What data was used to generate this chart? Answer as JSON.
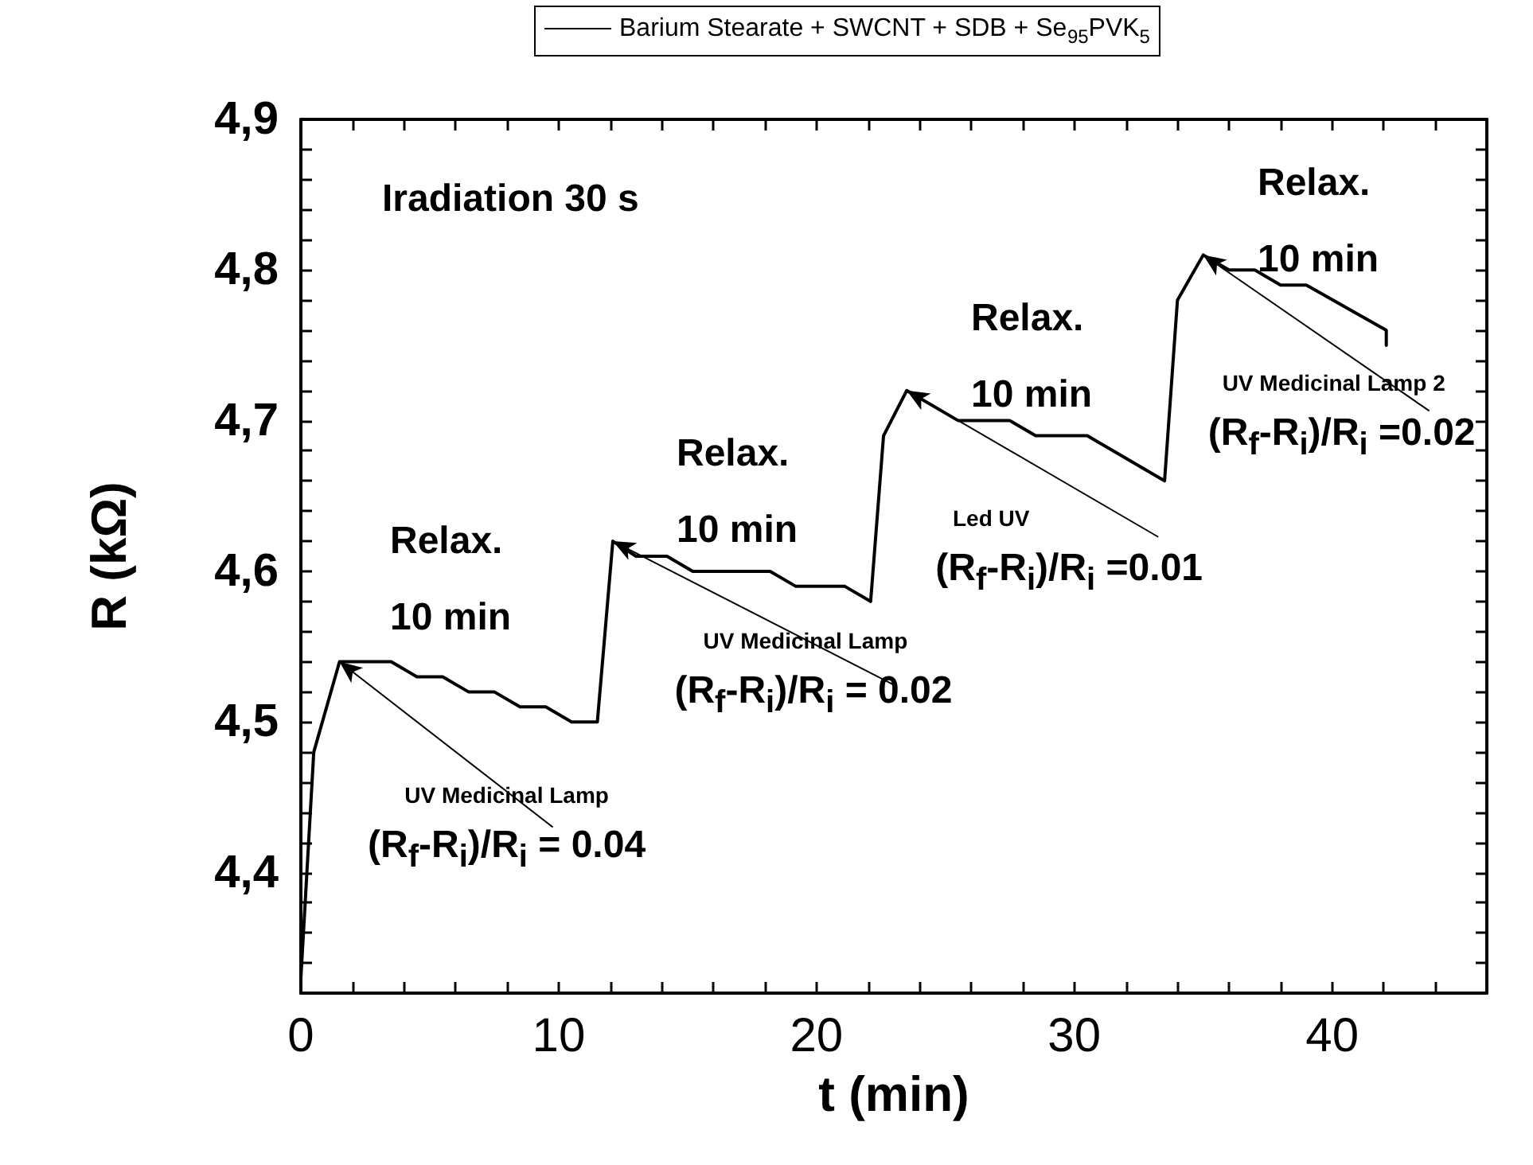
{
  "chart_data": {
    "type": "line",
    "xlabel": "t (min)",
    "ylabel": "R (kΩ)",
    "xlim": [
      0,
      46
    ],
    "ylim": [
      4.32,
      4.9
    ],
    "xticks": [
      0,
      {
        "value": 2,
        "label": null
      },
      {
        "value": 4,
        "label": null
      },
      {
        "value": 6,
        "label": null
      },
      {
        "value": 8,
        "label": null
      },
      10,
      {
        "value": 12,
        "label": null
      },
      {
        "value": 14,
        "label": null
      },
      {
        "value": 16,
        "label": null
      },
      {
        "value": 18,
        "label": null
      },
      20,
      {
        "value": 22,
        "label": null
      },
      {
        "value": 24,
        "label": null
      },
      {
        "value": 26,
        "label": null
      },
      {
        "value": 28,
        "label": null
      },
      30,
      {
        "value": 32,
        "label": null
      },
      {
        "value": 34,
        "label": null
      },
      {
        "value": 36,
        "label": null
      },
      {
        "value": 38,
        "label": null
      },
      40,
      {
        "value": 42,
        "label": null
      },
      {
        "value": 44,
        "label": null
      }
    ],
    "yticks": [
      {
        "value": 4.34,
        "label": null
      },
      {
        "value": 4.36,
        "label": null
      },
      {
        "value": 4.38,
        "label": null
      },
      {
        "value": 4.4,
        "label": "4,4"
      },
      {
        "value": 4.42,
        "label": null
      },
      {
        "value": 4.44,
        "label": null
      },
      {
        "value": 4.46,
        "label": null
      },
      {
        "value": 4.48,
        "label": null
      },
      {
        "value": 4.5,
        "label": "4,5"
      },
      {
        "value": 4.52,
        "label": null
      },
      {
        "value": 4.54,
        "label": null
      },
      {
        "value": 4.56,
        "label": null
      },
      {
        "value": 4.58,
        "label": null
      },
      {
        "value": 4.6,
        "label": "4,6"
      },
      {
        "value": 4.62,
        "label": null
      },
      {
        "value": 4.64,
        "label": null
      },
      {
        "value": 4.66,
        "label": null
      },
      {
        "value": 4.68,
        "label": null
      },
      {
        "value": 4.7,
        "label": "4,7"
      },
      {
        "value": 4.72,
        "label": null
      },
      {
        "value": 4.74,
        "label": null
      },
      {
        "value": 4.76,
        "label": null
      },
      {
        "value": 4.78,
        "label": null
      },
      {
        "value": 4.8,
        "label": "4,8"
      },
      {
        "value": 4.82,
        "label": null
      },
      {
        "value": 4.84,
        "label": null
      },
      {
        "value": 4.86,
        "label": null
      },
      {
        "value": 4.88,
        "label": null
      },
      {
        "value": 4.9,
        "label": "4,9"
      }
    ],
    "grid": false,
    "legend": "top right",
    "marker": "none",
    "line_style": "solid",
    "series": [
      {
        "name": "Barium Stearate + SWCNT + SDB + Se$_{95}$PVK$_{5}$",
        "color": "#000000",
        "x": [
          0,
          0.5,
          1.5,
          3.5,
          4.5,
          5.5,
          6.5,
          7.5,
          8.5,
          9.5,
          10.5,
          11.5,
          12.1,
          13,
          14.2,
          15.2,
          18.2,
          19.2,
          21.1,
          22.1,
          22.6,
          23.5,
          25.5,
          27.5,
          28.5,
          30.5,
          33.5,
          34,
          35,
          36,
          37,
          38,
          39,
          42.1,
          42.1
        ],
        "values": [
          4.33,
          4.48,
          4.54,
          4.54,
          4.53,
          4.53,
          4.52,
          4.52,
          4.51,
          4.51,
          4.5,
          4.5,
          4.62,
          4.61,
          4.61,
          4.6,
          4.6,
          4.59,
          4.59,
          4.58,
          4.69,
          4.72,
          4.7,
          4.7,
          4.69,
          4.69,
          4.66,
          4.78,
          4.81,
          4.8,
          4.8,
          4.79,
          4.79,
          4.76,
          4.75
        ]
      }
    ],
    "annotations": [
      "Iradiation 30 s",
      "Relax.\n10 min",
      "Relax.\n10 min",
      "Relax.\n10 min",
      "Relax.\n10 min",
      {
        "text": "UV Medicinal Lamp\n(R$_{f}$-R$_{i}$)/R$_{i}$ = 0.04",
        "x": 1.5,
        "y": 4.54
      },
      {
        "text": "UV Medicinal Lamp\n(R$_{f}$-R$_{i}$)/R$_{i}$ = 0.02",
        "x": 12.1,
        "y": 4.62
      },
      {
        "text": "Led UV\n(R$_{f}$-R$_{i}$)/R$_{i}$ =0.01",
        "x": 23.5,
        "y": 4.72
      },
      {
        "text": "UV Medicinal Lamp 2\n(R$_{f}$-R$_{i}$)/R$_{i}$ =0.02",
        "x": 35,
        "y": 4.81
      }
    ]
  }
}
